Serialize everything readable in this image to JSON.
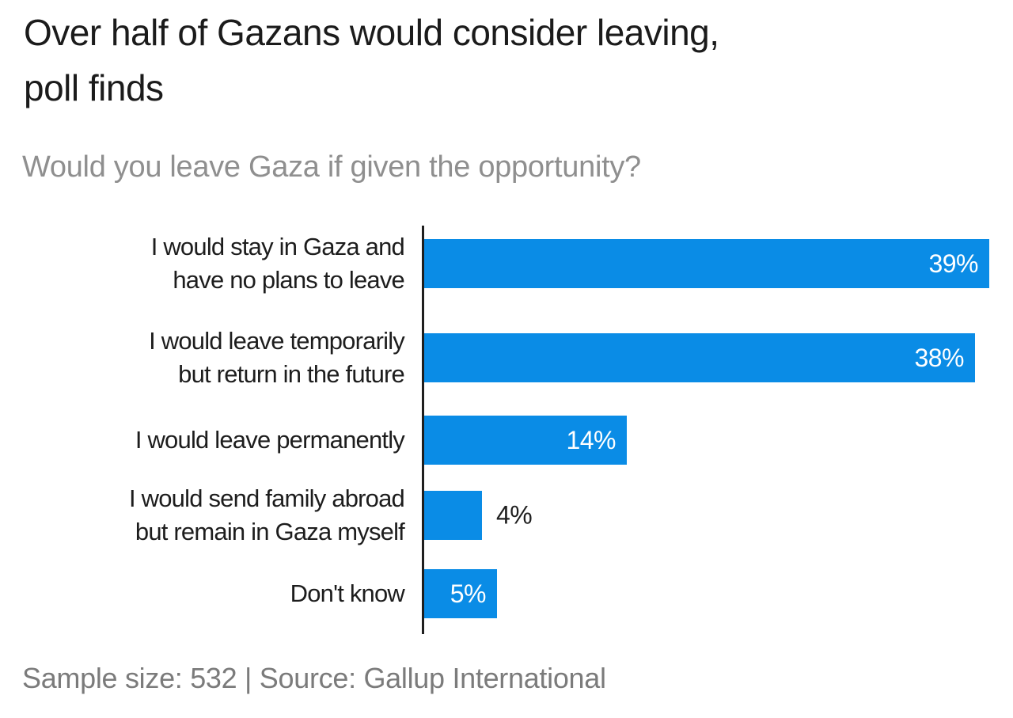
{
  "header": {
    "title_line1": "Over half of Gazans would consider leaving,",
    "title_line2": "poll finds",
    "subtitle": "Would you leave Gaza if given the opportunity?"
  },
  "footer": {
    "text": "Sample size: 532 | Source: Gallup International"
  },
  "colors": {
    "bar": "#0a8ce6",
    "axis": "#1f1f1f",
    "title": "#1b1b1b",
    "subtitle": "#8f8f8f",
    "category_label": "#1d1d1d",
    "value_label_inside": "#ffffff",
    "value_label_outside": "#1f1f1f",
    "footer": "#7b7b7b",
    "background": "#ffffff"
  },
  "chart_data": {
    "type": "bar",
    "orientation": "horizontal",
    "title": "Over half of Gazans would consider leaving, poll finds",
    "question": "Would you leave Gaza if given the opportunity?",
    "categories": [
      "I would stay in Gaza and have no plans to leave",
      "I would leave temporarily but return in the future",
      "I would leave permanently",
      "I would send family abroad but remain in Gaza myself",
      "Don't know"
    ],
    "category_lines": [
      [
        "I would stay in Gaza and",
        "have no plans to leave"
      ],
      [
        "I would leave temporarily",
        "but return in the future"
      ],
      [
        "I would leave permanently"
      ],
      [
        "I would send family abroad",
        "but remain in Gaza myself"
      ],
      [
        "Don't know"
      ]
    ],
    "values": [
      39,
      38,
      14,
      4,
      5
    ],
    "value_labels": [
      "39%",
      "38%",
      "14%",
      "4%",
      "5%"
    ],
    "unit": "%",
    "xlim": [
      0,
      39
    ],
    "grid": false,
    "legend": false,
    "value_label_placement": "inside-right, outside when bar too short",
    "sample_size": "532",
    "source": "Gallup International"
  }
}
